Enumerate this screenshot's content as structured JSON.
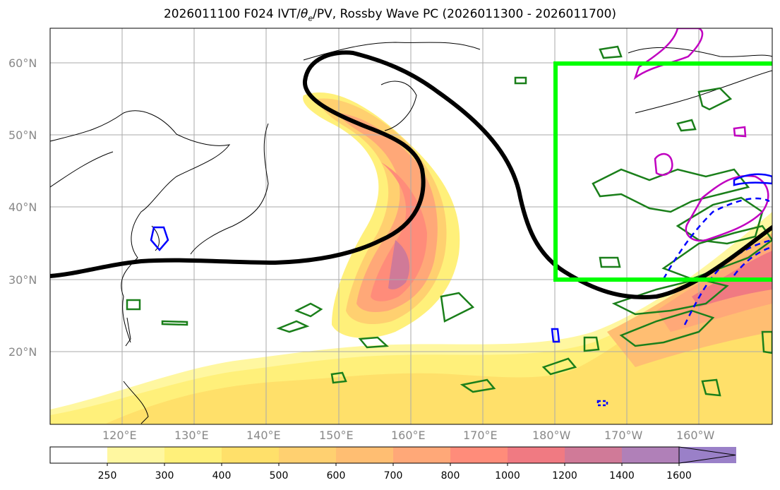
{
  "title": {
    "prefix": "2026011100 F024 IVT/",
    "theta": "θ",
    "theta_sub": "e",
    "suffix": "/PV, Rossby Wave PC (2026011300 - 2026011700)"
  },
  "lat_labels": [
    "60°N",
    "50°N",
    "40°N",
    "30°N",
    "20°N"
  ],
  "lon_labels": [
    "120°E",
    "130°E",
    "140°E",
    "150°E",
    "160°E",
    "170°E",
    "180°W",
    "170°W",
    "160°W"
  ],
  "colorbar": {
    "ticks": [
      "250",
      "300",
      "400",
      "500",
      "600",
      "700",
      "800",
      "1000",
      "1200",
      "1400",
      "1600"
    ],
    "colors": [
      "#ffffff",
      "#fff7a0",
      "#fff07a",
      "#ffe06a",
      "#ffd070",
      "#ffbe72",
      "#ffa878",
      "#ff8c7a",
      "#f07a82",
      "#d07a98",
      "#b080b8",
      "#9a80c8"
    ]
  },
  "colors": {
    "highlight_box": "#00ff00",
    "wave_path": "#000000",
    "coast": "#000000",
    "contour_green": "#1a7f1a",
    "contour_magenta": "#c000c0",
    "contour_blue": "#0000ff"
  }
}
